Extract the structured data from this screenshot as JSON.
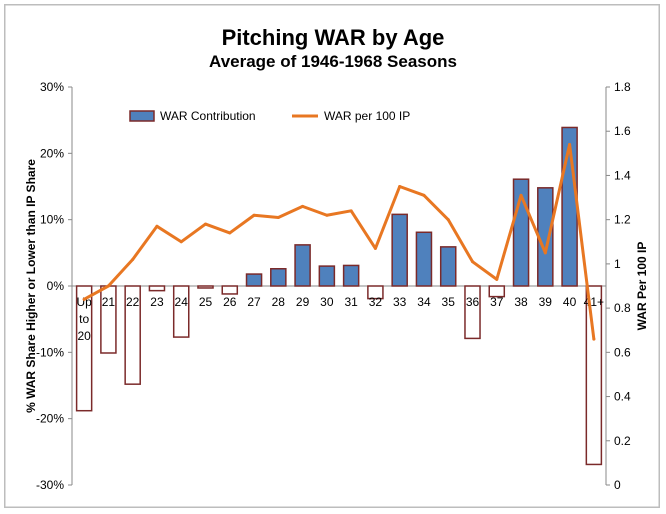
{
  "chart_data": {
    "type": "bar",
    "title": "Pitching WAR by Age",
    "subtitle": "Average of 1946-1968 Seasons",
    "ylabel": "% WAR Share Higher or Lower than IP Share",
    "y2label": "WAR Per 100 IP",
    "ylim": [
      -30,
      30
    ],
    "y2lim": [
      0,
      1.8
    ],
    "y_ticks": [
      "-30%",
      "-20%",
      "-10%",
      "0%",
      "10%",
      "20%",
      "30%"
    ],
    "y2_ticks": [
      "0",
      "0.2",
      "0.4",
      "0.6",
      "0.8",
      "1",
      "1.2",
      "1.4",
      "1.6",
      "1.8"
    ],
    "categories": [
      [
        "Up",
        "to",
        "20"
      ],
      [
        "21"
      ],
      [
        "22"
      ],
      [
        "23"
      ],
      [
        "24"
      ],
      [
        "25"
      ],
      [
        "26"
      ],
      [
        "27"
      ],
      [
        "28"
      ],
      [
        "29"
      ],
      [
        "30"
      ],
      [
        "31"
      ],
      [
        "32"
      ],
      [
        "33"
      ],
      [
        "34"
      ],
      [
        "35"
      ],
      [
        "36"
      ],
      [
        "37"
      ],
      [
        "38"
      ],
      [
        "39"
      ],
      [
        "40"
      ],
      [
        "41+"
      ]
    ],
    "legend_position": "top",
    "series": [
      {
        "name": "WAR Contribution",
        "kind": "bar",
        "axis": "left",
        "values": [
          -18.8,
          -10.1,
          -14.8,
          -0.7,
          -7.7,
          -0.3,
          -1.2,
          1.8,
          2.6,
          6.2,
          3.0,
          3.1,
          -1.9,
          10.8,
          8.1,
          5.9,
          -7.9,
          -1.6,
          16.1,
          14.8,
          23.9,
          -26.9
        ],
        "color_pos": "#4f81bd",
        "color_neg": "#ffffff",
        "border": "#7b2a2a"
      },
      {
        "name": "WAR per 100 IP",
        "kind": "line",
        "axis": "right",
        "values": [
          0.84,
          0.9,
          1.02,
          1.17,
          1.1,
          1.18,
          1.14,
          1.22,
          1.21,
          1.26,
          1.22,
          1.24,
          1.07,
          1.35,
          1.31,
          1.2,
          1.01,
          0.93,
          1.31,
          1.05,
          1.54,
          0.66
        ],
        "color": "#e87722"
      }
    ]
  }
}
